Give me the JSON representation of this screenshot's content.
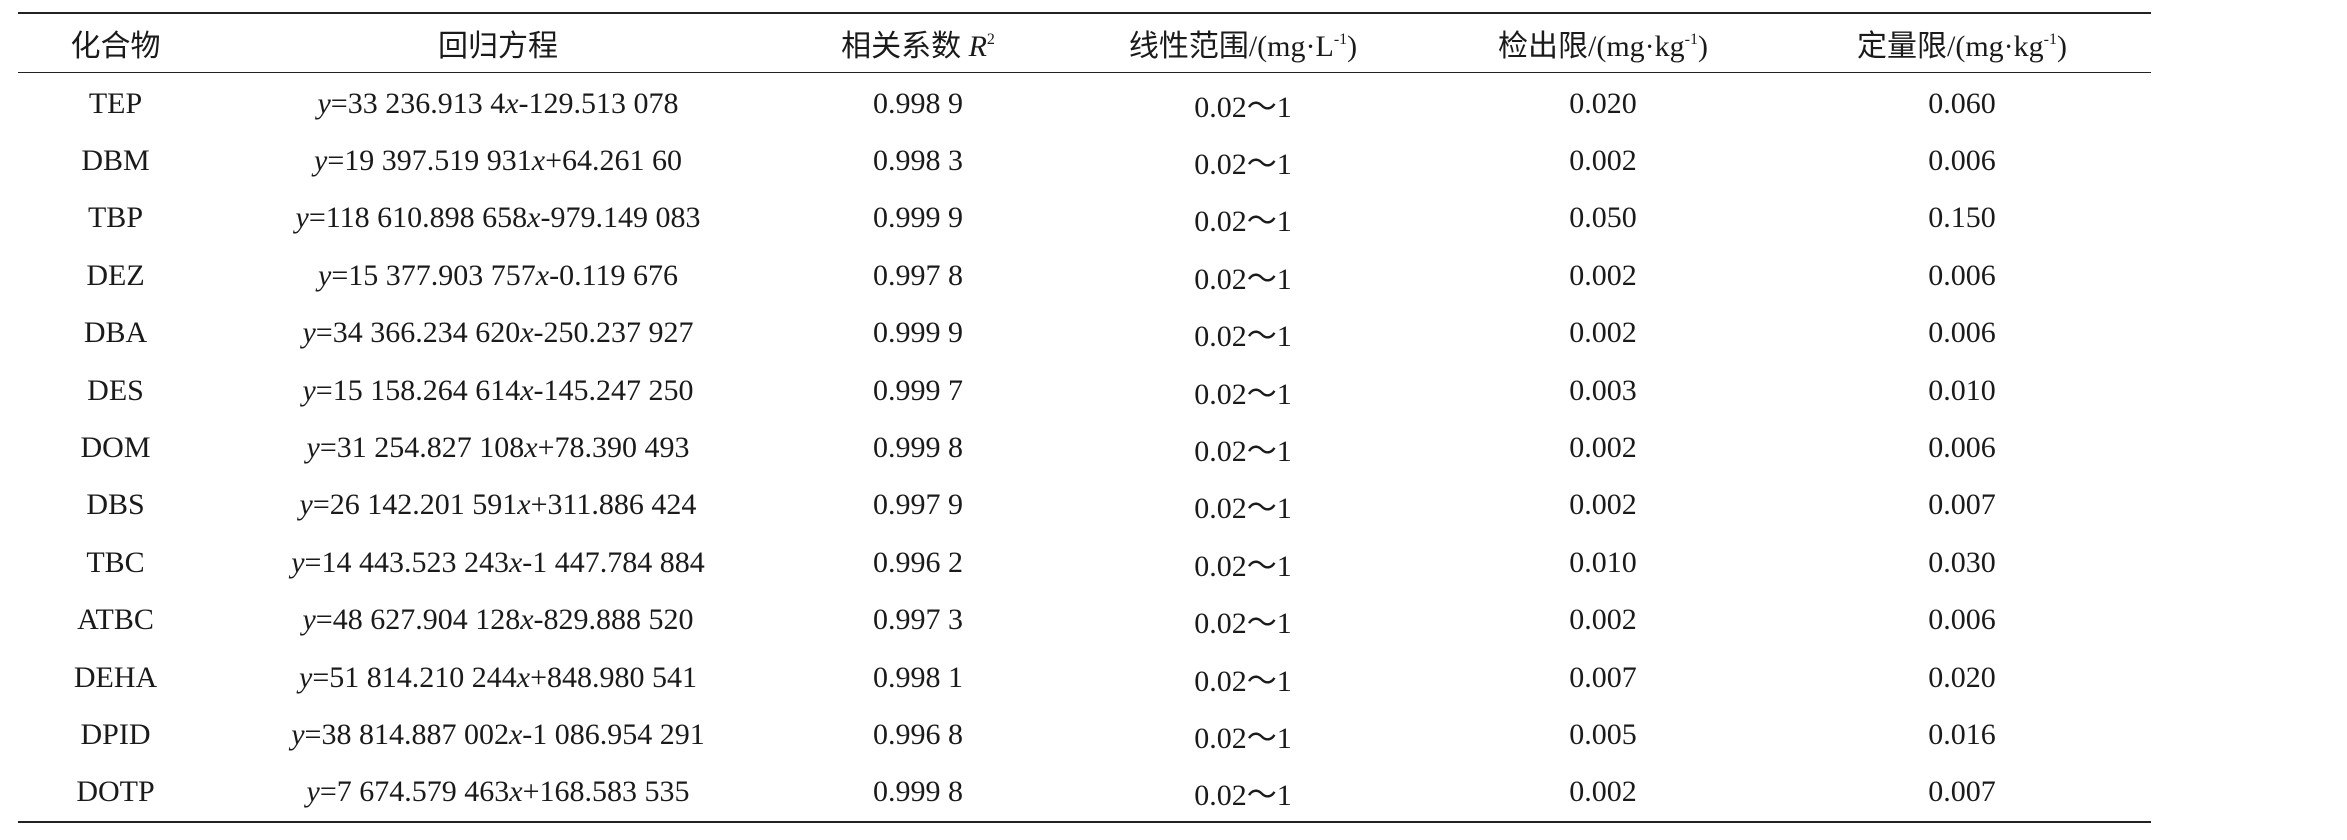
{
  "table": {
    "headers": {
      "compound": "化合物",
      "equation": "回归方程",
      "r2_prefix": "相关系数 ",
      "r2_var": "R",
      "r2_sup": "2",
      "range_prefix": "线性范围/(mg·L",
      "range_sup": "-1",
      "range_suffix": ")",
      "lod_prefix": "检出限/(mg·kg",
      "lod_sup": "-1",
      "lod_suffix": ")",
      "loq_prefix": "定量限/(mg·kg",
      "loq_sup": "-1",
      "loq_suffix": ")"
    },
    "rows": [
      {
        "compound": "TEP",
        "eq_a": "=33 236.913 4",
        "eq_b": "-129.513 078",
        "r2": "0.998 9",
        "range": "0.02～1",
        "lod": "0.020",
        "loq": "0.060"
      },
      {
        "compound": "DBM",
        "eq_a": "=19 397.519 931",
        "eq_b": "+64.261 60",
        "r2": "0.998 3",
        "range": "0.02～1",
        "lod": "0.002",
        "loq": "0.006"
      },
      {
        "compound": "TBP",
        "eq_a": "=118 610.898 658",
        "eq_b": "-979.149 083",
        "r2": "0.999 9",
        "range": "0.02～1",
        "lod": "0.050",
        "loq": "0.150"
      },
      {
        "compound": "DEZ",
        "eq_a": "=15 377.903 757",
        "eq_b": "-0.119 676",
        "r2": "0.997 8",
        "range": "0.02～1",
        "lod": "0.002",
        "loq": "0.006"
      },
      {
        "compound": "DBA",
        "eq_a": "=34 366.234 620",
        "eq_b": "-250.237 927",
        "r2": "0.999 9",
        "range": "0.02～1",
        "lod": "0.002",
        "loq": "0.006"
      },
      {
        "compound": "DES",
        "eq_a": "=15 158.264 614",
        "eq_b": "-145.247 250",
        "r2": "0.999 7",
        "range": "0.02～1",
        "lod": "0.003",
        "loq": "0.010"
      },
      {
        "compound": "DOM",
        "eq_a": "=31 254.827 108",
        "eq_b": "+78.390 493",
        "r2": "0.999 8",
        "range": "0.02～1",
        "lod": "0.002",
        "loq": "0.006"
      },
      {
        "compound": "DBS",
        "eq_a": "=26 142.201 591",
        "eq_b": "+311.886 424",
        "r2": "0.997 9",
        "range": "0.02～1",
        "lod": "0.002",
        "loq": "0.007"
      },
      {
        "compound": "TBC",
        "eq_a": "=14 443.523 243",
        "eq_b": "-1 447.784 884",
        "r2": "0.996 2",
        "range": "0.02～1",
        "lod": "0.010",
        "loq": "0.030"
      },
      {
        "compound": "ATBC",
        "eq_a": "=48 627.904 128",
        "eq_b": "-829.888 520",
        "r2": "0.997 3",
        "range": "0.02～1",
        "lod": "0.002",
        "loq": "0.006"
      },
      {
        "compound": "DEHA",
        "eq_a": "=51 814.210 244",
        "eq_b": "+848.980 541",
        "r2": "0.998 1",
        "range": "0.02～1",
        "lod": "0.007",
        "loq": "0.020"
      },
      {
        "compound": "DPID",
        "eq_a": "=38 814.887 002",
        "eq_b": "-1 086.954 291",
        "r2": "0.996 8",
        "range": "0.02～1",
        "lod": "0.005",
        "loq": "0.016"
      },
      {
        "compound": "DOTP",
        "eq_a": "=7 674.579 463",
        "eq_b": "+168.583 535",
        "r2": "0.999 8",
        "range": "0.02～1",
        "lod": "0.002",
        "loq": "0.007"
      }
    ]
  }
}
